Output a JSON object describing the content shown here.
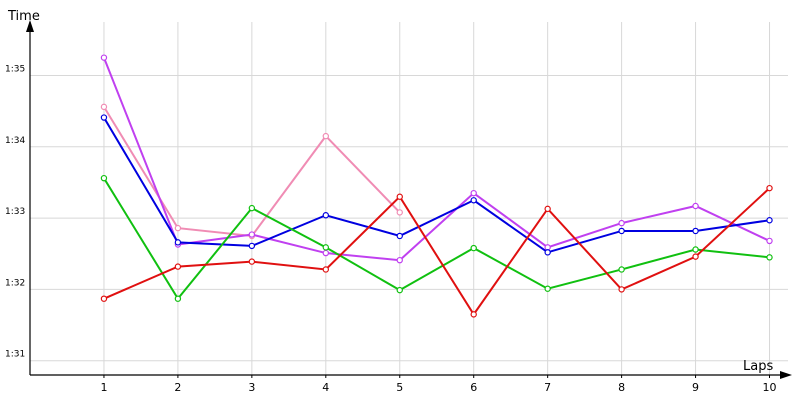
{
  "chart_data": {
    "type": "line",
    "y_label": "Time",
    "x_label": "Laps",
    "x": [
      1,
      2,
      3,
      4,
      5,
      6,
      7,
      8,
      9,
      10
    ],
    "xlim": [
      0,
      10.25
    ],
    "xticks": [
      1,
      2,
      3,
      4,
      5,
      6,
      7,
      8,
      9,
      10
    ],
    "ylim": [
      90.8,
      95.75
    ],
    "yticks": [
      {
        "value": 91,
        "label": "1:31"
      },
      {
        "value": 92,
        "label": "1:32"
      },
      {
        "value": 93,
        "label": "1:33"
      },
      {
        "value": 94,
        "label": "1:34"
      },
      {
        "value": 95,
        "label": "1:35"
      }
    ],
    "grid": true,
    "series": [
      {
        "color": "#f08cb4",
        "values": [
          94.56,
          92.86,
          92.75,
          94.15,
          93.08,
          null,
          null,
          null,
          null,
          null
        ]
      },
      {
        "color": "#c040f0",
        "values": [
          95.25,
          92.63,
          92.77,
          92.51,
          92.41,
          93.35,
          92.59,
          92.93,
          93.17,
          92.68
        ]
      },
      {
        "color": "#0000e0",
        "values": [
          94.41,
          92.66,
          92.61,
          93.04,
          92.75,
          93.25,
          92.52,
          92.82,
          92.82,
          92.97
        ]
      },
      {
        "color": "#10c010",
        "values": [
          93.56,
          91.87,
          93.14,
          92.59,
          91.99,
          92.58,
          92.01,
          92.28,
          92.56,
          92.45
        ]
      },
      {
        "color": "#e01010",
        "values": [
          91.87,
          92.32,
          92.39,
          92.28,
          93.3,
          91.65,
          93.13,
          92.0,
          92.46,
          93.42
        ]
      }
    ]
  }
}
